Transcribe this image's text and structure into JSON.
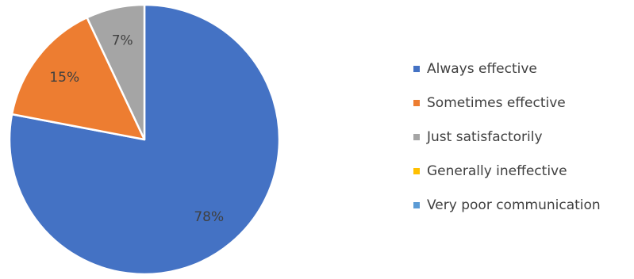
{
  "chart_data": {
    "type": "pie",
    "title": "",
    "categories": [
      "Always effective",
      "Sometimes effective",
      "Just satisfactorily",
      "Generally ineffective",
      "Very poor communication"
    ],
    "values": [
      78,
      15,
      7,
      0,
      0
    ],
    "data_labels": [
      "78%",
      "15%",
      "7%",
      "",
      ""
    ],
    "colors": [
      "#4472C4",
      "#ED7D31",
      "#A5A5A5",
      "#FFC000",
      "#5B9BD5"
    ],
    "legend_position": "right"
  }
}
